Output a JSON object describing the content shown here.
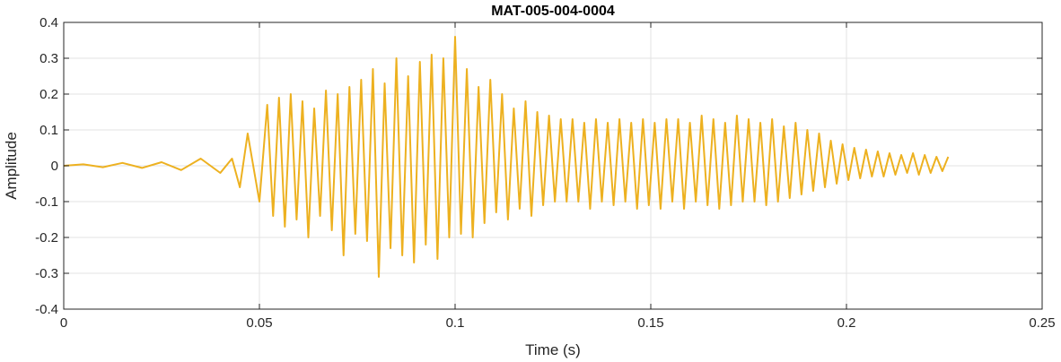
{
  "chart_data": {
    "type": "line",
    "title": "MAT-005-004-0004",
    "xlabel": "Time (s)",
    "ylabel": "Amplitude",
    "xlim": [
      0,
      0.25
    ],
    "ylim": [
      -0.4,
      0.4
    ],
    "xticks": [
      0,
      0.05,
      0.1,
      0.15,
      0.2,
      0.25
    ],
    "xtick_labels": [
      "0",
      "0.05",
      "0.1",
      "0.15",
      "0.2",
      "0.25"
    ],
    "yticks": [
      -0.4,
      -0.3,
      -0.2,
      -0.1,
      0,
      0.1,
      0.2,
      0.3,
      0.4
    ],
    "ytick_labels": [
      "-0.4",
      "-0.3",
      "-0.2",
      "-0.1",
      "0",
      "0.1",
      "0.2",
      "0.3",
      "0.4"
    ],
    "grid": true,
    "line_color": "#EDB120",
    "series": [
      {
        "x": [
          0,
          0.005,
          0.01,
          0.015,
          0.02,
          0.025,
          0.03,
          0.035,
          0.04,
          0.043,
          0.045,
          0.047,
          0.05,
          0.052,
          0.0535,
          0.055,
          0.0565,
          0.058,
          0.0595,
          0.061,
          0.0625,
          0.064,
          0.0655,
          0.067,
          0.0685,
          0.07,
          0.0715,
          0.073,
          0.0745,
          0.076,
          0.0775,
          0.079,
          0.0805,
          0.082,
          0.0835,
          0.085,
          0.0865,
          0.088,
          0.0895,
          0.091,
          0.0925,
          0.094,
          0.0955,
          0.097,
          0.0985,
          0.1,
          0.1015,
          0.103,
          0.1045,
          0.106,
          0.1075,
          0.109,
          0.1105,
          0.112,
          0.1135,
          0.115,
          0.1165,
          0.118,
          0.1195,
          0.121,
          0.1225,
          0.124,
          0.1255,
          0.127,
          0.1285,
          0.13,
          0.1315,
          0.133,
          0.1345,
          0.136,
          0.1375,
          0.139,
          0.1405,
          0.142,
          0.1435,
          0.145,
          0.1465,
          0.148,
          0.1495,
          0.151,
          0.1525,
          0.154,
          0.1555,
          0.157,
          0.1585,
          0.16,
          0.1615,
          0.163,
          0.1645,
          0.166,
          0.1675,
          0.169,
          0.1705,
          0.172,
          0.1735,
          0.175,
          0.1765,
          0.178,
          0.1795,
          0.181,
          0.1825,
          0.184,
          0.1855,
          0.187,
          0.1885,
          0.19,
          0.1915,
          0.193,
          0.1945,
          0.196,
          0.1975,
          0.199,
          0.2005,
          0.202,
          0.2035,
          0.205,
          0.2065,
          0.208,
          0.2095,
          0.211,
          0.2125,
          0.214,
          0.2155,
          0.217,
          0.2185,
          0.22,
          0.2215,
          0.223,
          0.2245,
          0.226
        ],
        "y": [
          0,
          0.004,
          -0.004,
          0.008,
          -0.006,
          0.01,
          -0.012,
          0.02,
          -0.02,
          0.02,
          -0.06,
          0.09,
          -0.1,
          0.17,
          -0.14,
          0.19,
          -0.17,
          0.2,
          -0.15,
          0.18,
          -0.2,
          0.16,
          -0.14,
          0.21,
          -0.18,
          0.2,
          -0.25,
          0.22,
          -0.19,
          0.24,
          -0.21,
          0.27,
          -0.31,
          0.23,
          -0.23,
          0.3,
          -0.25,
          0.25,
          -0.27,
          0.29,
          -0.22,
          0.31,
          -0.26,
          0.3,
          -0.2,
          0.36,
          -0.19,
          0.27,
          -0.2,
          0.22,
          -0.16,
          0.24,
          -0.13,
          0.2,
          -0.15,
          0.16,
          -0.12,
          0.18,
          -0.14,
          0.15,
          -0.11,
          0.14,
          -0.1,
          0.13,
          -0.1,
          0.13,
          -0.1,
          0.12,
          -0.12,
          0.13,
          -0.1,
          0.12,
          -0.11,
          0.13,
          -0.1,
          0.12,
          -0.12,
          0.13,
          -0.11,
          0.12,
          -0.12,
          0.13,
          -0.1,
          0.13,
          -0.12,
          0.12,
          -0.1,
          0.14,
          -0.11,
          0.13,
          -0.12,
          0.12,
          -0.11,
          0.14,
          -0.1,
          0.13,
          -0.1,
          0.12,
          -0.11,
          0.13,
          -0.1,
          0.11,
          -0.09,
          0.12,
          -0.08,
          0.1,
          -0.07,
          0.09,
          -0.06,
          0.07,
          -0.05,
          0.06,
          -0.04,
          0.05,
          -0.035,
          0.045,
          -0.03,
          0.04,
          -0.03,
          0.035,
          -0.025,
          0.03,
          -0.02,
          0.035,
          -0.025,
          0.03,
          -0.02,
          0.025,
          -0.015,
          0.025
        ]
      }
    ]
  }
}
